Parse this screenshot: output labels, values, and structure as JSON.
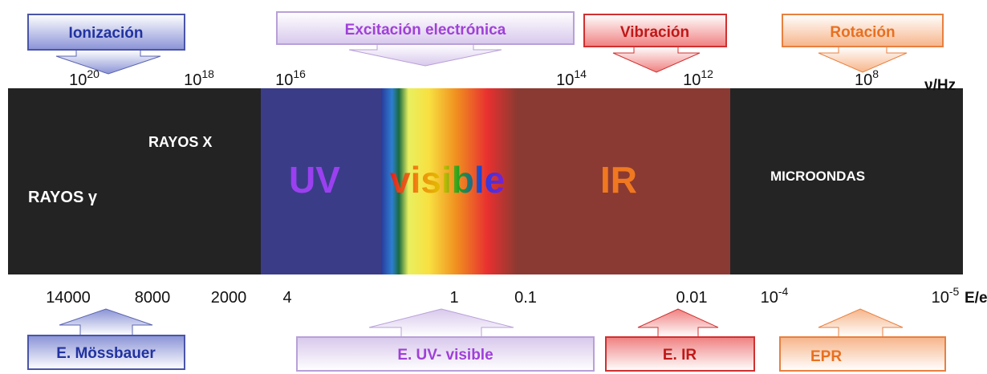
{
  "top_boxes": [
    "Ionización",
    "Excitación electrónica",
    "Vibración",
    "Rotación"
  ],
  "frequency": {
    "labels": [
      {
        "base": "10",
        "exp": "20"
      },
      {
        "base": "10",
        "exp": "18"
      },
      {
        "base": "10",
        "exp": "16"
      },
      {
        "base": "10",
        "exp": "14"
      },
      {
        "base": "10",
        "exp": "12"
      },
      {
        "base": "10",
        "exp": "8"
      }
    ],
    "unit": "ν/Hz"
  },
  "regions": {
    "xray": "RAYOS X",
    "gamma": "RAYOS γ",
    "uv": "UV",
    "visible": "visible",
    "ir": "IR",
    "microwave": "MICROONDAS"
  },
  "energy": {
    "labels": [
      "14000",
      "8000",
      "2000",
      "4",
      "1",
      "0.1",
      "0.01",
      {
        "base": "10",
        "exp": "-4"
      },
      {
        "base": "10",
        "exp": "-5"
      }
    ],
    "unit": "E/eV"
  },
  "bottom_boxes": [
    "E. Mössbauer",
    "E. UV- visible",
    "E. IR",
    "EPR"
  ]
}
